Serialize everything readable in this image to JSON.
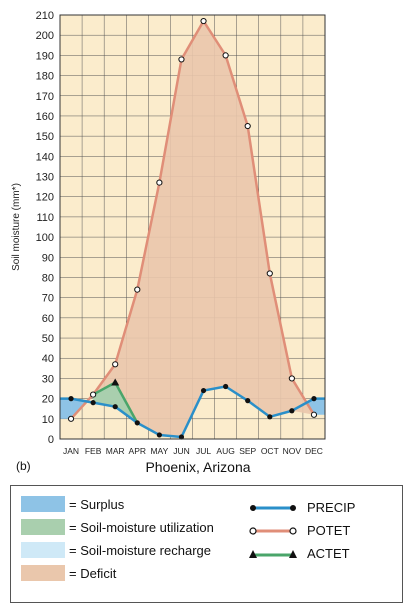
{
  "panel_label": "(b)",
  "place": "Phoenix, Arizona",
  "legend": {
    "areas": [
      {
        "label": "= Surplus",
        "color": "#8ec3e6"
      },
      {
        "label": "= Soil-moisture utilization",
        "color": "#a9cfae"
      },
      {
        "label": "= Soil-moisture recharge",
        "color": "#cfe9f7"
      },
      {
        "label": "= Deficit",
        "color": "#eac7ac"
      }
    ],
    "lines": [
      {
        "label": "PRECIP",
        "color": "#2a8fc9",
        "marker": "filled-circle"
      },
      {
        "label": "POTET",
        "color": "#e08e78",
        "marker": "open-circle"
      },
      {
        "label": "ACTET",
        "color": "#4aa56a",
        "marker": "filled-triangle"
      }
    ]
  },
  "chart_data": {
    "type": "line",
    "title": "",
    "xlabel": "",
    "ylabel": "Soil moisture (mm*)",
    "ylim": [
      0,
      210
    ],
    "yticks": [
      0,
      10,
      20,
      30,
      40,
      50,
      60,
      70,
      80,
      90,
      100,
      110,
      120,
      130,
      140,
      150,
      160,
      170,
      180,
      190,
      200,
      210
    ],
    "grid": true,
    "background": "#fbeccc",
    "categories": [
      "JAN",
      "FEB",
      "MAR",
      "APR",
      "MAY",
      "JUN",
      "JUL",
      "AUG",
      "SEP",
      "OCT",
      "NOV",
      "DEC"
    ],
    "series": [
      {
        "name": "PRECIP",
        "color": "#2a8fc9",
        "marker": "filled-circle",
        "values": [
          20,
          18,
          16,
          8,
          2,
          1,
          24,
          26,
          19,
          11,
          14,
          20
        ]
      },
      {
        "name": "POTET",
        "color": "#e08e78",
        "marker": "open-circle",
        "values": [
          10,
          22,
          37,
          74,
          127,
          188,
          207,
          190,
          155,
          82,
          30,
          12
        ]
      },
      {
        "name": "ACTET",
        "color": "#4aa56a",
        "marker": "filled-triangle",
        "values": [
          null,
          22,
          28,
          8,
          null,
          null,
          null,
          null,
          null,
          null,
          null,
          null
        ]
      }
    ]
  }
}
